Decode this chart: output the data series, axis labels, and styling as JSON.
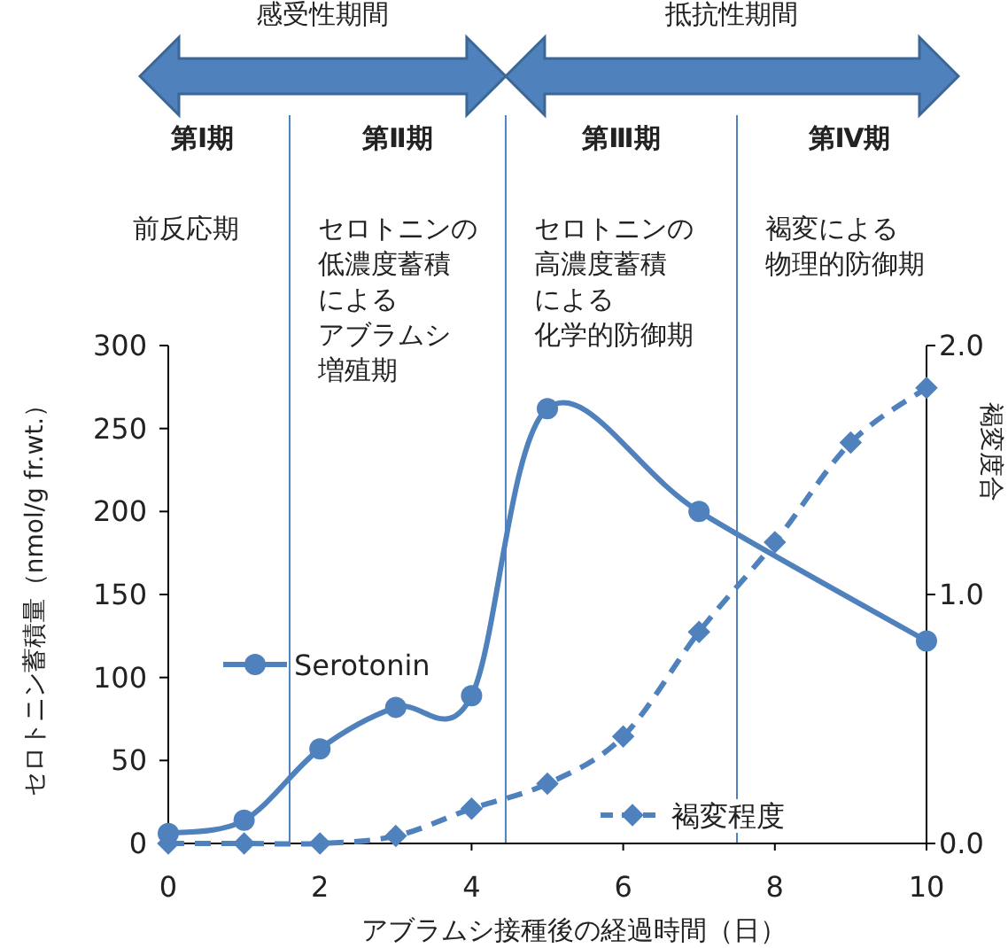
{
  "chart_data": {
    "type": "line",
    "xlabel": "アブラムシ接種後の経過時間（日）",
    "ylabel": "セロトニン蓄積量（nmol/g fr.wt.）",
    "y2label": "褐変度合",
    "xlim": [
      0,
      10
    ],
    "xticks": [
      0,
      2,
      4,
      6,
      8,
      10
    ],
    "ylim": [
      0,
      300
    ],
    "yticks": [
      0,
      50,
      100,
      150,
      200,
      250,
      300
    ],
    "y2lim": [
      0,
      2
    ],
    "y2ticks": [
      {
        "value": 0,
        "label": "0.0"
      },
      {
        "value": 1,
        "label": "1.0"
      },
      {
        "value": 2,
        "label": "2.0"
      }
    ],
    "grid": false,
    "legend": "left",
    "series": [
      {
        "name": "Serotonin",
        "color": "#4f81bd",
        "marker": "circle",
        "line_style": "solid",
        "x": [
          0,
          1,
          2,
          3,
          4,
          5,
          7,
          10
        ],
        "values": [
          6,
          14,
          57,
          82,
          89,
          262,
          200,
          122
        ]
      },
      {
        "name": "褐変程度",
        "color": "#4f81bd",
        "marker": "diamond",
        "line_style": "dashed",
        "axis": "y2",
        "x": [
          0,
          1,
          2,
          3,
          4,
          5,
          6,
          7,
          8,
          9,
          10
        ],
        "values": [
          0,
          0,
          0,
          0.03,
          0.14,
          0.24,
          0.43,
          0.85,
          1.21,
          1.61,
          1.83
        ]
      }
    ],
    "ref_lines": [
      {
        "axis": "x",
        "value": 1.6,
        "color": "#4f81bd"
      },
      {
        "axis": "x",
        "value": 4.45,
        "color": "#4f81bd"
      },
      {
        "axis": "x",
        "value": 7.5,
        "color": "#4f81bd"
      }
    ],
    "annotations": [
      "感受性期間",
      "抵抗性期間",
      "第Ⅰ期",
      "第Ⅱ期",
      "第Ⅲ期",
      "第Ⅳ期",
      "前反応期",
      "セロトニンの",
      "低濃度蓄積",
      "による",
      "アブラムシ",
      "増殖期",
      "セロトニンの",
      "高濃度蓄積",
      "による",
      "化学的防御期",
      "褐変による",
      "物理的防御期"
    ]
  }
}
